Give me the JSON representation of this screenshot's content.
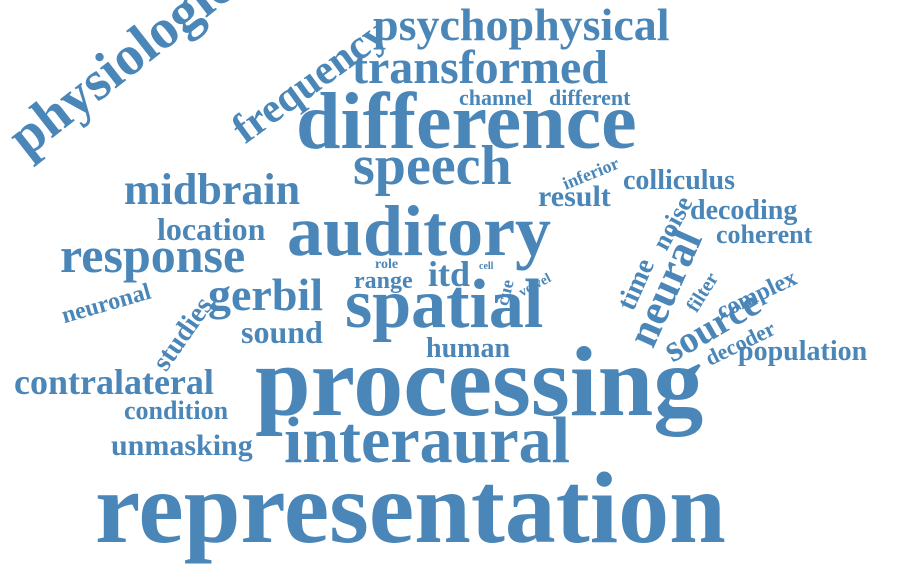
{
  "color": "#4a86b8",
  "words": [
    {
      "id": "representation",
      "text": "representation"
    },
    {
      "id": "processing",
      "text": "processing"
    },
    {
      "id": "difference",
      "text": "difference"
    },
    {
      "id": "auditory",
      "text": "auditory"
    },
    {
      "id": "interaural",
      "text": "interaural"
    },
    {
      "id": "spatial",
      "text": "spatial"
    },
    {
      "id": "physiological",
      "text": "physiological"
    },
    {
      "id": "psychophysical",
      "text": "psychophysical"
    },
    {
      "id": "transformed",
      "text": "transformed"
    },
    {
      "id": "speech",
      "text": "speech"
    },
    {
      "id": "frequency",
      "text": "frequency"
    },
    {
      "id": "midbrain",
      "text": "midbrain"
    },
    {
      "id": "response",
      "text": "response"
    },
    {
      "id": "gerbil",
      "text": "gerbil"
    },
    {
      "id": "neural",
      "text": "neural"
    },
    {
      "id": "contralateral",
      "text": "contralateral"
    },
    {
      "id": "source",
      "text": "source"
    },
    {
      "id": "location",
      "text": "location"
    },
    {
      "id": "sound",
      "text": "sound"
    },
    {
      "id": "unmasking",
      "text": "unmasking"
    },
    {
      "id": "population",
      "text": "population"
    },
    {
      "id": "colliculus",
      "text": "colliculus"
    },
    {
      "id": "channel",
      "text": "channel"
    },
    {
      "id": "different",
      "text": "different"
    },
    {
      "id": "result",
      "text": "result"
    },
    {
      "id": "itd",
      "text": "itd"
    },
    {
      "id": "condition",
      "text": "condition"
    },
    {
      "id": "human",
      "text": "human"
    },
    {
      "id": "decoding",
      "text": "decoding"
    },
    {
      "id": "coherent",
      "text": "coherent"
    },
    {
      "id": "time",
      "text": "time"
    },
    {
      "id": "noise",
      "text": "noise"
    },
    {
      "id": "studies",
      "text": "studies"
    },
    {
      "id": "neuronal",
      "text": "neuronal"
    },
    {
      "id": "range",
      "text": "range"
    },
    {
      "id": "complex",
      "text": "complex"
    },
    {
      "id": "decoder",
      "text": "decoder"
    },
    {
      "id": "filter",
      "text": "filter"
    },
    {
      "id": "inferior",
      "text": "inferior"
    },
    {
      "id": "cue",
      "text": "cue"
    },
    {
      "id": "role",
      "text": "role"
    },
    {
      "id": "vowel",
      "text": "vowel"
    },
    {
      "id": "cell",
      "text": "cell"
    }
  ]
}
